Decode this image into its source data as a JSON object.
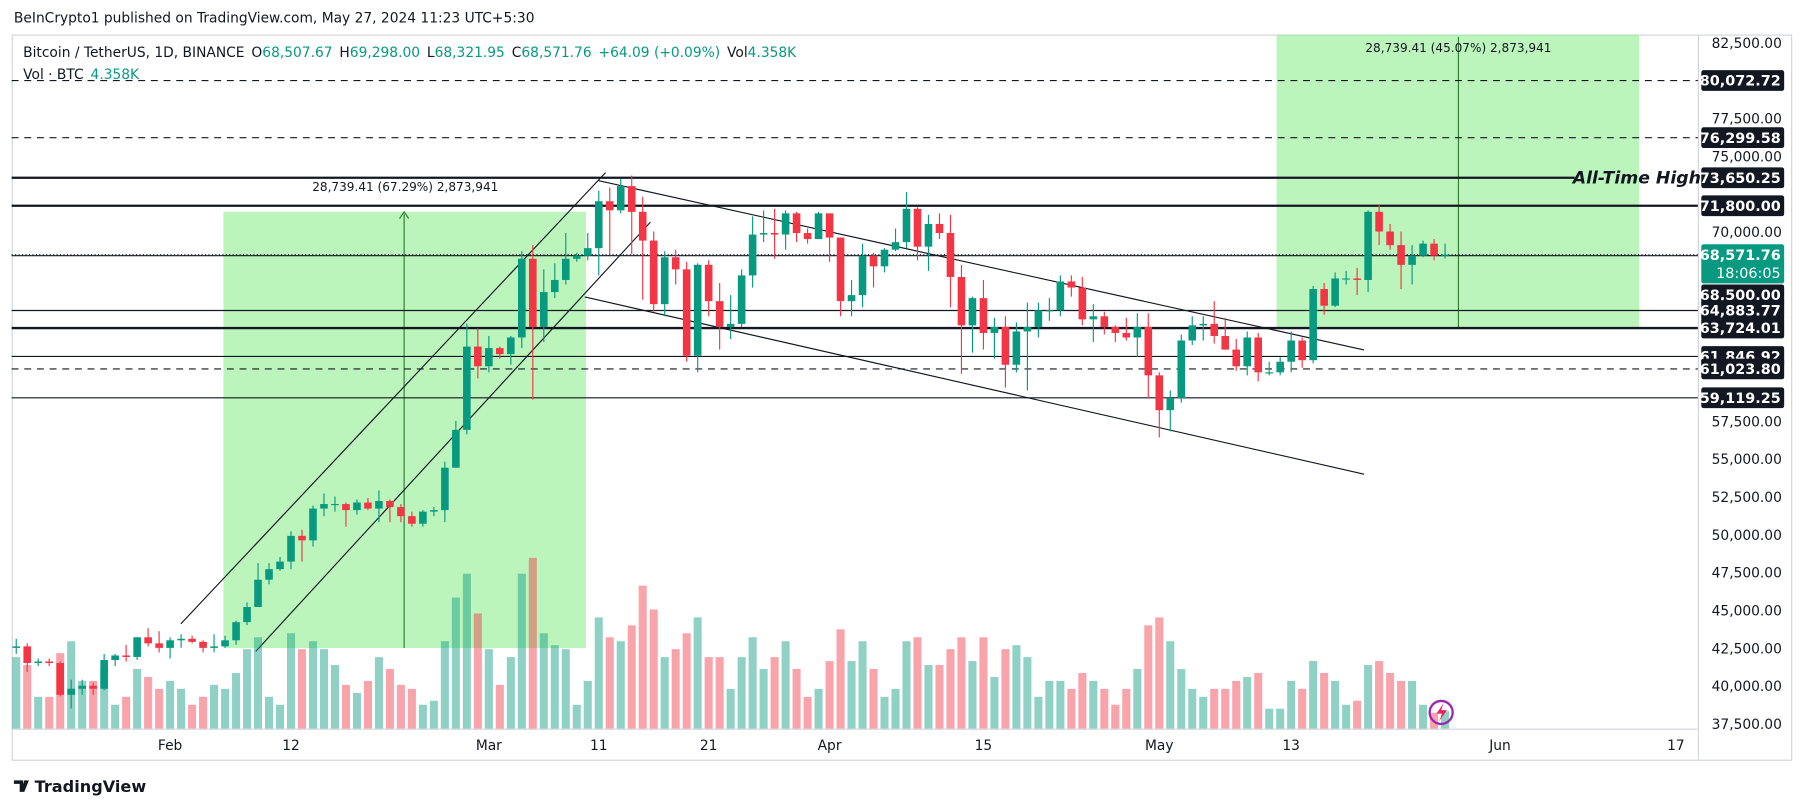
{
  "header": "BeInCrypto1 published on TradingView.com, May 27, 2024 11:23 UTC+5:30",
  "footer": "TradingView",
  "chart_data": {
    "type": "candlestick",
    "symbol": "Bitcoin / TetherUS, 1D, BINANCE",
    "legend": [
      {
        "key": "O",
        "value": "68,507.67"
      },
      {
        "key": "H",
        "value": "69,298.00"
      },
      {
        "key": "L",
        "value": "68,321.95"
      },
      {
        "key": "C",
        "value": "68,571.76"
      }
    ],
    "change": "+64.09 (+0.09%)",
    "volume_legend": {
      "key": "Vol",
      "value": "4.358K"
    },
    "volume_title": "Vol · BTC",
    "volume_value": "4.358K",
    "up_color": "#089981",
    "down_color": "#f23645",
    "start": "2024-01-18",
    "xlim": [
      "2024-01-18",
      "2024-06-19"
    ],
    "xticks": [
      {
        "value": "2024-02-01",
        "label": "Feb"
      },
      {
        "value": "2024-02-12",
        "label": "12"
      },
      {
        "value": "2024-03-01",
        "label": "Mar"
      },
      {
        "value": "2024-03-11",
        "label": "11"
      },
      {
        "value": "2024-03-21",
        "label": "21"
      },
      {
        "value": "2024-04-01",
        "label": "Apr"
      },
      {
        "value": "2024-04-15",
        "label": "15"
      },
      {
        "value": "2024-05-01",
        "label": "May"
      },
      {
        "value": "2024-05-13",
        "label": "13"
      },
      {
        "value": "2024-06-01",
        "label": "Jun"
      },
      {
        "value": "2024-06-17",
        "label": "17"
      }
    ],
    "ylim": [
      37270,
      83110
    ],
    "yticks": [
      {
        "value": 37500,
        "label": "37,500.00"
      },
      {
        "value": 40000,
        "label": "40,000.00"
      },
      {
        "value": 42500,
        "label": "42,500.00"
      },
      {
        "value": 45000,
        "label": "45,000.00"
      },
      {
        "value": 47500,
        "label": "47,500.00"
      },
      {
        "value": 50000,
        "label": "50,000.00"
      },
      {
        "value": 52500,
        "label": "52,500.00"
      },
      {
        "value": 55000,
        "label": "55,000.00"
      },
      {
        "value": 57500,
        "label": "57,500.00"
      },
      {
        "value": 70000,
        "label": "70,000.00"
      },
      {
        "value": 75000,
        "label": "75,000.00"
      },
      {
        "value": 77500,
        "label": "77,500.00"
      },
      {
        "value": 82500,
        "label": "82,500.00"
      }
    ],
    "grid": false,
    "levels": [
      {
        "value": 80072.72,
        "label": "80,072.72",
        "style": "dashed"
      },
      {
        "value": 76299.58,
        "label": "76,299.58",
        "style": "dashed"
      },
      {
        "value": 73650.25,
        "label": "73,650.25",
        "style": "thick"
      },
      {
        "value": 71800,
        "label": "71,800.00",
        "style": "thick"
      },
      {
        "value": 68500,
        "label": "68,500.00",
        "style": "thin"
      },
      {
        "value": 64883.77,
        "label": "64,883.77",
        "style": "thin"
      },
      {
        "value": 63724.01,
        "label": "63,724.01",
        "style": "thick"
      },
      {
        "value": 61846.92,
        "label": "61,846.92",
        "style": "thin"
      },
      {
        "value": 61023.8,
        "label": "61,023.80",
        "style": "dashed"
      },
      {
        "value": 59119.25,
        "label": "59,119.25",
        "style": "thin"
      }
    ],
    "ath_label": "All-Time High",
    "current_price": {
      "value": 68571.76,
      "label": "68,571.76",
      "countdown": "18:06:05"
    },
    "measures": [
      "28,739.41 (67.29%) 2,873,941",
      "28,739.41 (45.07%) 2,873,941"
    ],
    "candles": [
      [
        42600,
        43200,
        42200,
        42700
      ],
      [
        42700,
        42900,
        41000,
        41600
      ],
      [
        41600,
        41900,
        41400,
        41700
      ],
      [
        41700,
        41900,
        41400,
        41600
      ],
      [
        41600,
        41700,
        39400,
        39500
      ],
      [
        39500,
        40500,
        38600,
        39900
      ],
      [
        39900,
        40500,
        39500,
        40100
      ],
      [
        40100,
        40300,
        39500,
        39900
      ],
      [
        39900,
        42200,
        39800,
        41800
      ],
      [
        41800,
        42200,
        41400,
        42100
      ],
      [
        42100,
        42800,
        41700,
        42000
      ],
      [
        42000,
        43300,
        41800,
        43300
      ],
      [
        43300,
        43900,
        42700,
        42900
      ],
      [
        42900,
        43700,
        42300,
        42600
      ],
      [
        42600,
        43300,
        41900,
        43100
      ],
      [
        43100,
        43500,
        42600,
        43200
      ],
      [
        43200,
        43400,
        42900,
        43000
      ],
      [
        43000,
        43100,
        42300,
        42600
      ],
      [
        42600,
        43500,
        42300,
        42700
      ],
      [
        42700,
        43400,
        42600,
        43100
      ],
      [
        43100,
        44400,
        42800,
        44300
      ],
      [
        44300,
        45600,
        44100,
        45300
      ],
      [
        45300,
        48200,
        45300,
        47100
      ],
      [
        47100,
        48200,
        46800,
        47800
      ],
      [
        47800,
        48600,
        47700,
        48300
      ],
      [
        48300,
        50300,
        47800,
        50000
      ],
      [
        50000,
        50400,
        48300,
        49700
      ],
      [
        49700,
        52000,
        49300,
        51800
      ],
      [
        51800,
        52800,
        51300,
        52100
      ],
      [
        52100,
        52600,
        51600,
        52100
      ],
      [
        52100,
        52200,
        50600,
        51700
      ],
      [
        51700,
        52400,
        51400,
        52200
      ],
      [
        52200,
        52500,
        51700,
        51800
      ],
      [
        51800,
        53000,
        50900,
        52300
      ],
      [
        52300,
        52400,
        50900,
        51900
      ],
      [
        51900,
        52100,
        50900,
        51300
      ],
      [
        51300,
        51600,
        50600,
        50800
      ],
      [
        50800,
        51700,
        50600,
        51600
      ],
      [
        51600,
        51900,
        51300,
        51700
      ],
      [
        51700,
        54900,
        50900,
        54500
      ],
      [
        54500,
        57600,
        54500,
        57000
      ],
      [
        57000,
        64000,
        56700,
        62500
      ],
      [
        62500,
        63700,
        60400,
        61200
      ],
      [
        61200,
        63200,
        60800,
        62400
      ],
      [
        62400,
        62500,
        61700,
        62000
      ],
      [
        62000,
        63200,
        61300,
        63100
      ],
      [
        63100,
        68800,
        62400,
        68300
      ],
      [
        68300,
        69200,
        59000,
        63800
      ],
      [
        63800,
        67600,
        62800,
        66100
      ],
      [
        66100,
        68000,
        65700,
        66900
      ],
      [
        66900,
        70000,
        66600,
        68300
      ],
      [
        68300,
        68700,
        68100,
        68500
      ],
      [
        68500,
        70000,
        68200,
        69000
      ],
      [
        69000,
        72800,
        67200,
        72100
      ],
      [
        72100,
        73000,
        68600,
        71500
      ],
      [
        71500,
        73600,
        71300,
        73100
      ],
      [
        73100,
        73800,
        68600,
        71400
      ],
      [
        71400,
        72400,
        65600,
        69500
      ],
      [
        69500,
        70100,
        64800,
        65300
      ],
      [
        65300,
        68800,
        64500,
        68400
      ],
      [
        68400,
        68900,
        66600,
        67600
      ],
      [
        67600,
        68100,
        61500,
        61900
      ],
      [
        61900,
        68000,
        60800,
        67900
      ],
      [
        67900,
        68200,
        64500,
        65500
      ],
      [
        65500,
        66700,
        62300,
        63800
      ],
      [
        63800,
        65900,
        63000,
        64000
      ],
      [
        64000,
        67600,
        63800,
        67200
      ],
      [
        67200,
        71100,
        66400,
        69900
      ],
      [
        69900,
        71500,
        69400,
        70000
      ],
      [
        70000,
        71600,
        68300,
        69900
      ],
      [
        69900,
        71500,
        68900,
        71300
      ],
      [
        71300,
        71400,
        69400,
        70000
      ],
      [
        70000,
        70300,
        69300,
        69600
      ],
      [
        69600,
        71400,
        69600,
        71300
      ],
      [
        71300,
        71300,
        68100,
        69700
      ],
      [
        69700,
        69700,
        64500,
        65500
      ],
      [
        65500,
        66900,
        64500,
        65900
      ],
      [
        65900,
        69300,
        65100,
        68500
      ],
      [
        68500,
        68700,
        66400,
        67800
      ],
      [
        67800,
        69000,
        67400,
        68900
      ],
      [
        68900,
        70300,
        68800,
        69400
      ],
      [
        69400,
        72700,
        69000,
        71600
      ],
      [
        71600,
        71700,
        68200,
        69100
      ],
      [
        69100,
        71200,
        67500,
        70600
      ],
      [
        70600,
        71300,
        69600,
        70000
      ],
      [
        70000,
        71200,
        65100,
        67100
      ],
      [
        67100,
        67900,
        60700,
        63900
      ],
      [
        63900,
        65800,
        62100,
        65700
      ],
      [
        65700,
        66900,
        62300,
        63400
      ],
      [
        63400,
        64400,
        61700,
        63800
      ],
      [
        63800,
        64500,
        59800,
        61300
      ],
      [
        61300,
        64100,
        60800,
        63500
      ],
      [
        63500,
        65400,
        59600,
        63800
      ],
      [
        63800,
        65400,
        63100,
        64900
      ],
      [
        64900,
        65700,
        64200,
        64900
      ],
      [
        64900,
        67200,
        64500,
        66800
      ],
      [
        66800,
        67200,
        65800,
        66400
      ],
      [
        66400,
        67100,
        63900,
        64300
      ],
      [
        64300,
        65300,
        62800,
        64500
      ],
      [
        64500,
        64800,
        63300,
        63800
      ],
      [
        63800,
        63900,
        62800,
        63400
      ],
      [
        63400,
        64400,
        62900,
        63100
      ],
      [
        63100,
        64700,
        61800,
        63800
      ],
      [
        63800,
        64700,
        59100,
        60600
      ],
      [
        60600,
        60800,
        56500,
        58300
      ],
      [
        58300,
        59600,
        56900,
        59100
      ],
      [
        59100,
        63300,
        58800,
        62900
      ],
      [
        62900,
        64500,
        62600,
        63900
      ],
      [
        63900,
        64500,
        62900,
        64000
      ],
      [
        64000,
        65500,
        62700,
        63200
      ],
      [
        63200,
        64400,
        62300,
        62300
      ],
      [
        62300,
        63000,
        60900,
        61200
      ],
      [
        61200,
        63500,
        60600,
        63100
      ],
      [
        63100,
        63400,
        60200,
        60800
      ],
      [
        60800,
        61500,
        60600,
        60800
      ],
      [
        60800,
        61800,
        60600,
        61500
      ],
      [
        61500,
        63500,
        60800,
        62900
      ],
      [
        62900,
        63100,
        61100,
        61600
      ],
      [
        61600,
        66500,
        61400,
        66300
      ],
      [
        66300,
        66700,
        64600,
        65200
      ],
      [
        65200,
        67400,
        65100,
        67000
      ],
      [
        67000,
        67500,
        66600,
        67000
      ],
      [
        67000,
        67700,
        65900,
        66900
      ],
      [
        66900,
        71500,
        66100,
        71400
      ],
      [
        71400,
        71900,
        69200,
        70100
      ],
      [
        70100,
        70600,
        68900,
        69200
      ],
      [
        69200,
        70100,
        66300,
        67900
      ],
      [
        67900,
        69200,
        66600,
        68500
      ],
      [
        68500,
        69500,
        68400,
        69300
      ],
      [
        69300,
        69600,
        68200,
        68507.67
      ],
      [
        68507.67,
        69298,
        68321.95,
        68571.76
      ]
    ],
    "volume": [
      18,
      16,
      8,
      8,
      19,
      22,
      12,
      12,
      15,
      6,
      8,
      15,
      13,
      10,
      12,
      10,
      6,
      8,
      11,
      10,
      14,
      20,
      23,
      8,
      6,
      24,
      20,
      22,
      20,
      16,
      11,
      9,
      12,
      18,
      15,
      11,
      10,
      6,
      7,
      22,
      33,
      39,
      29,
      20,
      11,
      18,
      39,
      43,
      24,
      21,
      20,
      6,
      12,
      28,
      23,
      22,
      26,
      36,
      30,
      18,
      20,
      24,
      28,
      18,
      18,
      10,
      18,
      23,
      15,
      18,
      22,
      15,
      8,
      10,
      17,
      25,
      17,
      22,
      15,
      8,
      10,
      22,
      23,
      16,
      16,
      20,
      23,
      17,
      23,
      13,
      20,
      21,
      18,
      8,
      12,
      12,
      10,
      14,
      12,
      10,
      6,
      10,
      15,
      26,
      28,
      22,
      15,
      10,
      8,
      10,
      10,
      12,
      13,
      14,
      5,
      5,
      12,
      10,
      17,
      14,
      12,
      6,
      7,
      16,
      17,
      14,
      12,
      12,
      6,
      4,
      4.358
    ]
  }
}
